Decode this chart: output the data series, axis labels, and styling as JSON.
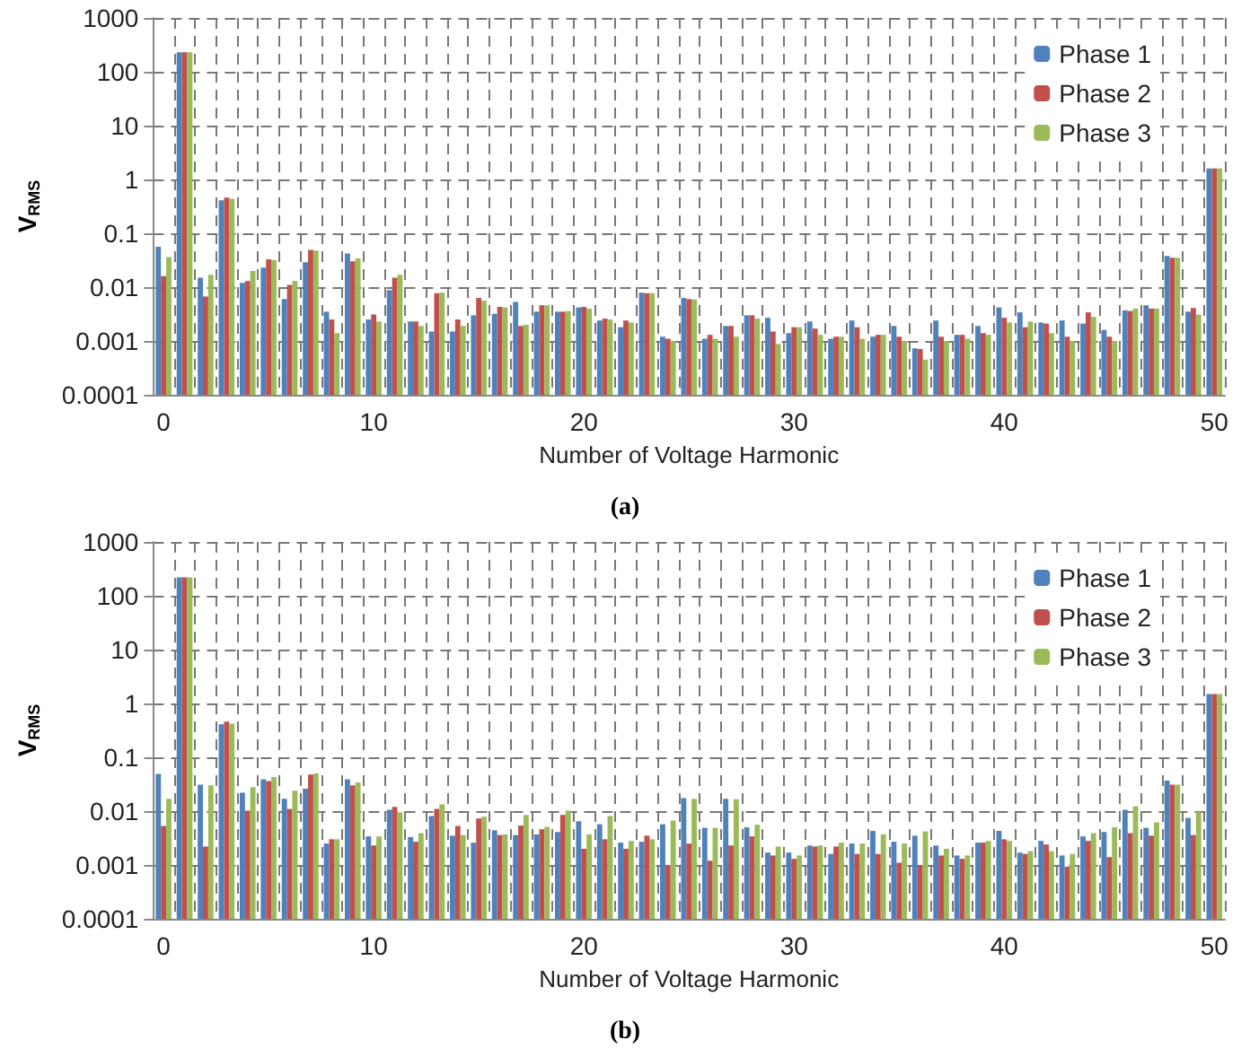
{
  "chart_data": [
    {
      "type": "bar",
      "xlabel": "Number of Voltage Harmonic",
      "ylabel": "V$_{RMS}$",
      "annotations": [
        "(a)"
      ],
      "log": true,
      "grid": true,
      "legend": "top right",
      "ylim": [
        0.0001,
        1000
      ],
      "yticks": [
        0.0001,
        0.001,
        0.01,
        0.1,
        1,
        10,
        100,
        1000
      ],
      "categories": [
        "0",
        null,
        null,
        null,
        null,
        null,
        null,
        null,
        null,
        null,
        "10",
        null,
        null,
        null,
        null,
        null,
        null,
        null,
        null,
        null,
        "20",
        null,
        null,
        null,
        null,
        null,
        null,
        null,
        null,
        null,
        "30",
        null,
        null,
        null,
        null,
        null,
        null,
        null,
        null,
        null,
        "40",
        null,
        null,
        null,
        null,
        null,
        null,
        null,
        null,
        null,
        "50"
      ],
      "series": [
        {
          "name": "Phase 1",
          "color": "#4f81bd",
          "values": [
            0.056,
            230,
            0.015,
            0.41,
            0.012,
            0.023,
            0.006,
            0.029,
            0.0035,
            0.042,
            0.0025,
            0.0088,
            0.0023,
            0.0015,
            0.0015,
            0.003,
            0.0032,
            0.0053,
            0.0035,
            0.0035,
            0.0042,
            0.0024,
            0.0018,
            0.0079,
            0.0012,
            0.0063,
            0.0011,
            0.0019,
            0.003,
            0.0027,
            0.0014,
            0.0023,
            0.0011,
            0.0024,
            0.0012,
            0.0019,
            0.00073,
            0.0024,
            0.0013,
            0.0019,
            0.0042,
            0.0034,
            0.0022,
            0.0024,
            0.0021,
            0.0016,
            0.0037,
            0.0046,
            0.038,
            0.0035,
            1.6
          ]
        },
        {
          "name": "Phase 2",
          "color": "#c0504d",
          "values": [
            0.016,
            230,
            0.0067,
            0.46,
            0.013,
            0.033,
            0.011,
            0.049,
            0.0025,
            0.03,
            0.0031,
            0.015,
            0.0023,
            0.0077,
            0.0025,
            0.0063,
            0.0043,
            0.0019,
            0.0046,
            0.0035,
            0.0043,
            0.0026,
            0.0024,
            0.0077,
            0.0011,
            0.006,
            0.0013,
            0.0019,
            0.003,
            0.0015,
            0.0018,
            0.0017,
            0.0012,
            0.0018,
            0.0013,
            0.0012,
            0.00071,
            0.0012,
            0.0013,
            0.0014,
            0.0027,
            0.0018,
            0.0021,
            0.0012,
            0.0034,
            0.0012,
            0.0036,
            0.004,
            0.035,
            0.0041,
            1.6
          ]
        },
        {
          "name": "Phase 3",
          "color": "#9bbb59",
          "values": [
            0.036,
            230,
            0.017,
            0.44,
            0.02,
            0.032,
            0.013,
            0.048,
            0.0014,
            0.034,
            0.0023,
            0.017,
            0.0019,
            0.0079,
            0.0019,
            0.0056,
            0.0042,
            0.002,
            0.0046,
            0.0036,
            0.004,
            0.0025,
            0.0022,
            0.0077,
            0.001,
            0.0059,
            0.0011,
            0.0012,
            0.0026,
            0.00088,
            0.0018,
            0.0013,
            0.0012,
            0.0011,
            0.0013,
            0.001,
            0.00045,
            0.001,
            0.0011,
            0.0013,
            0.0022,
            0.0023,
            0.0014,
            0.001,
            0.0028,
            0.001,
            0.004,
            0.004,
            0.035,
            0.0031,
            1.6
          ]
        }
      ]
    },
    {
      "type": "bar",
      "xlabel": "Number of Voltage Harmonic",
      "ylabel": "V$_{RMS}$",
      "annotations": [
        "(b)"
      ],
      "log": true,
      "grid": true,
      "legend": "top right",
      "ylim": [
        0.0001,
        1000
      ],
      "yticks": [
        0.0001,
        0.001,
        0.01,
        0.1,
        1,
        10,
        100,
        1000
      ],
      "categories": [
        "0",
        null,
        null,
        null,
        null,
        null,
        null,
        null,
        null,
        null,
        "10",
        null,
        null,
        null,
        null,
        null,
        null,
        null,
        null,
        null,
        "20",
        null,
        null,
        null,
        null,
        null,
        null,
        null,
        null,
        null,
        "30",
        null,
        null,
        null,
        null,
        null,
        null,
        null,
        null,
        null,
        "40",
        null,
        null,
        null,
        null,
        null,
        null,
        null,
        null,
        null,
        "50"
      ],
      "series": [
        {
          "name": "Phase 1",
          "color": "#4f81bd",
          "values": [
            0.049,
            220,
            0.031,
            0.41,
            0.022,
            0.039,
            0.017,
            0.026,
            0.0025,
            0.039,
            0.0034,
            0.0106,
            0.0033,
            0.0081,
            0.0035,
            0.0026,
            0.0044,
            0.0036,
            0.0037,
            0.0041,
            0.0065,
            0.0057,
            0.0026,
            0.0027,
            0.0057,
            0.0174,
            0.0049,
            0.017,
            0.005,
            0.0017,
            0.0017,
            0.0023,
            0.0016,
            0.0025,
            0.0043,
            0.0027,
            0.0035,
            0.0023,
            0.0015,
            0.0026,
            0.0043,
            0.0017,
            0.0028,
            0.0015,
            0.0034,
            0.0041,
            0.0106,
            0.0049,
            0.037,
            0.0075,
            1.5
          ]
        },
        {
          "name": "Phase 2",
          "color": "#c0504d",
          "values": [
            0.0053,
            220,
            0.0022,
            0.46,
            0.0102,
            0.036,
            0.011,
            0.048,
            0.003,
            0.03,
            0.0023,
            0.012,
            0.0027,
            0.011,
            0.0053,
            0.0073,
            0.0036,
            0.0054,
            0.0046,
            0.0085,
            0.002,
            0.003,
            0.002,
            0.0035,
            0.001,
            0.0025,
            0.0012,
            0.0023,
            0.0034,
            0.0015,
            0.0013,
            0.0022,
            0.0022,
            0.0016,
            0.0016,
            0.0011,
            0.001,
            0.0015,
            0.0013,
            0.0026,
            0.003,
            0.0016,
            0.0024,
            0.00093,
            0.0028,
            0.0014,
            0.0039,
            0.0035,
            0.031,
            0.0036,
            1.5
          ]
        },
        {
          "name": "Phase 3",
          "color": "#9bbb59",
          "values": [
            0.017,
            220,
            0.03,
            0.42,
            0.028,
            0.043,
            0.024,
            0.05,
            0.003,
            0.034,
            0.0034,
            0.0095,
            0.0039,
            0.0134,
            0.0036,
            0.0079,
            0.0037,
            0.0085,
            0.0051,
            0.0102,
            0.0037,
            0.0081,
            0.0028,
            0.003,
            0.0067,
            0.017,
            0.0049,
            0.0166,
            0.0056,
            0.0022,
            0.0015,
            0.0023,
            0.0026,
            0.0025,
            0.0037,
            0.0025,
            0.0042,
            0.002,
            0.0015,
            0.0028,
            0.0028,
            0.0018,
            0.0018,
            0.0016,
            0.0039,
            0.005,
            0.0123,
            0.0062,
            0.031,
            0.0097,
            1.5
          ]
        }
      ]
    }
  ]
}
